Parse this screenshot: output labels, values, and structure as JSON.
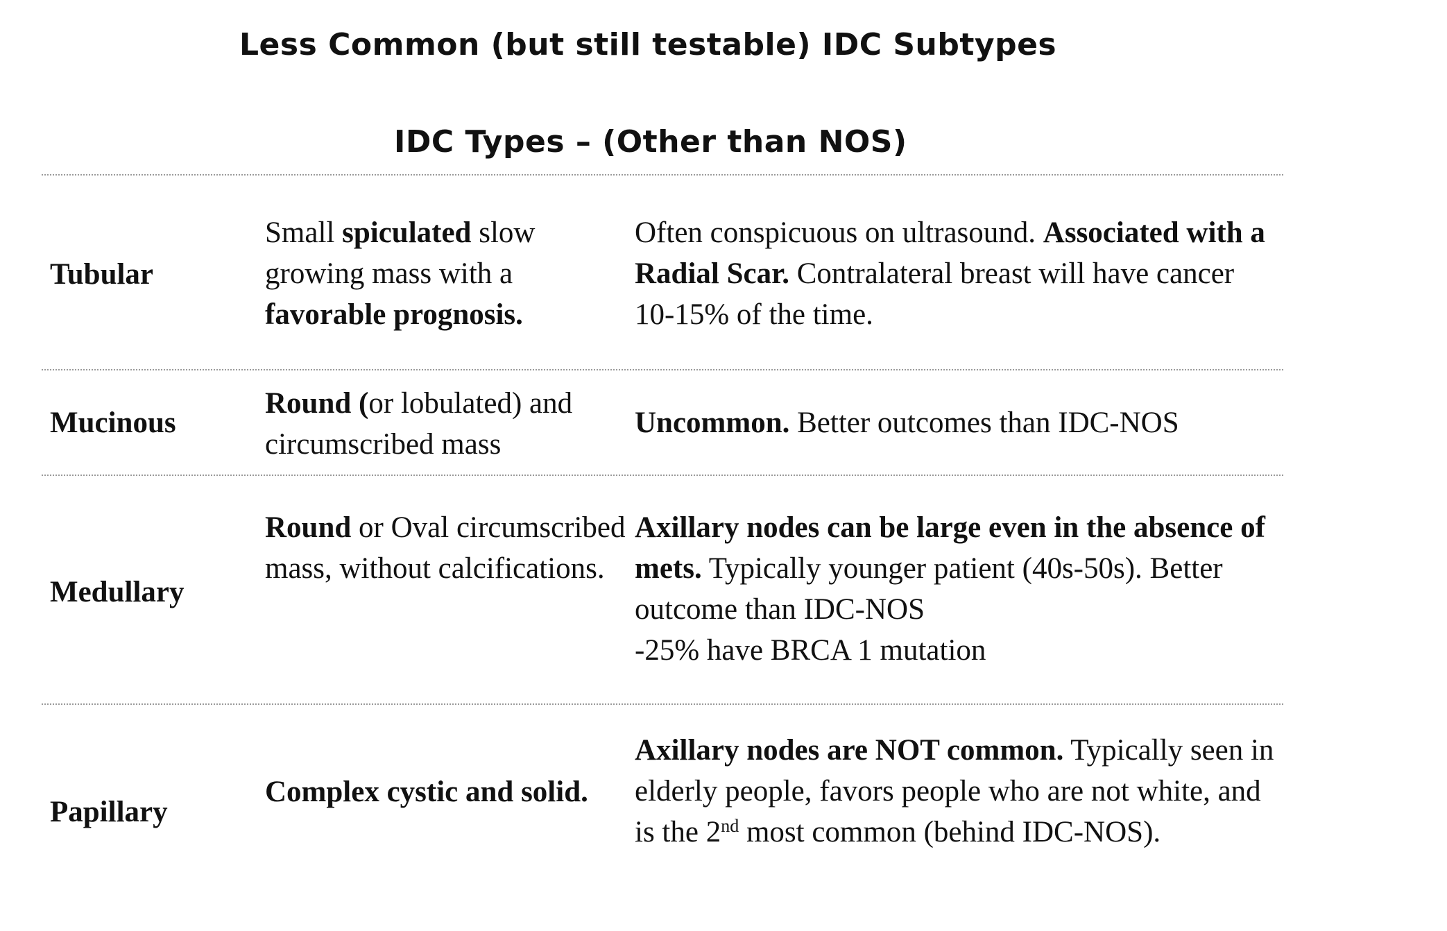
{
  "title": "Less Common (but still testable) IDC Subtypes",
  "subtitle": "IDC Types – (Other than NOS)",
  "rows": [
    {
      "name": "Tubular",
      "desc": [
        "Small ",
        "spiculated",
        " slow growing mass with a ",
        "favorable prognosis."
      ],
      "notes": [
        "Often conspicuous on ultrasound.  ",
        "Associated with a Radial Scar.",
        " Contralateral breast will have cancer 10-15% of the time."
      ]
    },
    {
      "name": "Mucinous",
      "desc": [
        "Round (",
        "or lobulated) and circumscribed mass"
      ],
      "notes": [
        "Uncommon.",
        "  Better outcomes than IDC-NOS"
      ]
    },
    {
      "name": "Medullary",
      "desc": [
        "Round",
        " or Oval circumscribed mass, without calcifications."
      ],
      "notes": [
        "Axillary nodes can be large even in the absence of mets.",
        "  Typically younger patient (40s-50s).  Better outcome than IDC-NOS",
        "-25% have BRCA 1 mutation"
      ]
    },
    {
      "name": "Papillary",
      "desc": [
        "Complex cystic and solid."
      ],
      "notes": [
        "Axillary nodes are NOT common.",
        "  Typically seen in elderly people, favors people who are not white, and is the 2",
        "nd",
        " most common (behind IDC-NOS)."
      ]
    }
  ]
}
